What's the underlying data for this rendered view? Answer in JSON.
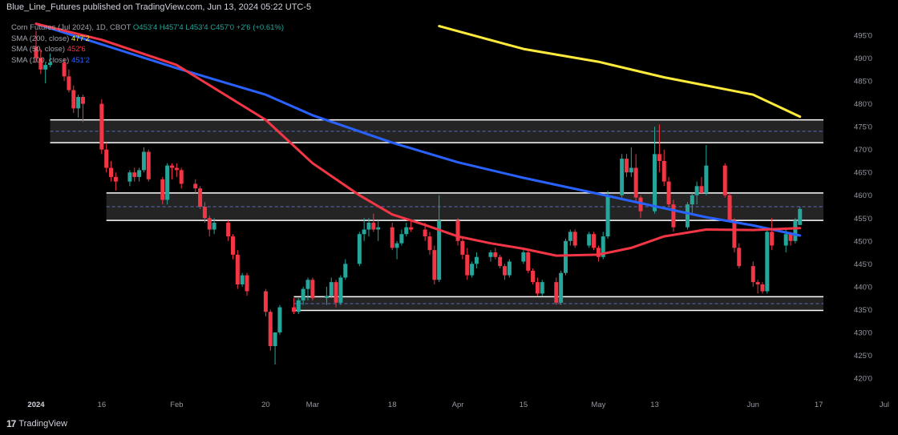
{
  "header": {
    "publisher": "Blue_Line_Futures published on TradingView.com, Jun 13, 2024 05:22 UTC-5"
  },
  "legend": {
    "symbol_line": {
      "name": "Corn Futures (Jul 2024), 1D, CBOT",
      "O": "O453'4",
      "H": "H457'4",
      "L": "L453'4",
      "C": "C457'0",
      "change": "+2'6 (+0.61%)"
    },
    "sma200": {
      "label": "SMA (200, close)",
      "value": "477'2",
      "color": "#ffeb3b"
    },
    "sma50": {
      "label": "SMA (50, close)",
      "value": "452'6",
      "color": "#f23645"
    },
    "sma100": {
      "label": "SMA (100, close)",
      "value": "451'2",
      "color": "#2962ff"
    }
  },
  "footer": {
    "brand": "TradingView"
  },
  "colors": {
    "up": "#26a69a",
    "down": "#f23645",
    "sma200": "#ffeb3b",
    "sma50": "#f23645",
    "sma100": "#2962ff",
    "zone_fill": "#2a2a2a",
    "zone_border": "#ffffff",
    "zone_mid": "#5b6cbf"
  },
  "chart_data": {
    "type": "candlestick",
    "ylim": [
      415,
      497
    ],
    "y_ticks": [
      "495'0",
      "490'0",
      "485'0",
      "480'0",
      "475'0",
      "470'0",
      "465'0",
      "460'0",
      "455'0",
      "450'0",
      "445'0",
      "440'0",
      "435'0",
      "430'0",
      "425'0",
      "420'0"
    ],
    "x_ticks": [
      {
        "label": "2024",
        "date": "2024-01-02",
        "bold": true
      },
      {
        "label": "16",
        "date": "2024-01-16"
      },
      {
        "label": "Feb",
        "date": "2024-02-01"
      },
      {
        "label": "20",
        "date": "2024-02-20"
      },
      {
        "label": "Mar",
        "date": "2024-03-01"
      },
      {
        "label": "18",
        "date": "2024-03-18"
      },
      {
        "label": "Apr",
        "date": "2024-04-01"
      },
      {
        "label": "15",
        "date": "2024-04-15"
      },
      {
        "label": "May",
        "date": "2024-05-01"
      },
      {
        "label": "13",
        "date": "2024-05-13"
      },
      {
        "label": "Jun",
        "date": "2024-06-03"
      },
      {
        "label": "17",
        "date": "2024-06-17"
      },
      {
        "label": "Jul",
        "date": "2024-07-01"
      }
    ],
    "zones": [
      {
        "from_date": "2024-01-05",
        "to_date": "2024-06-18",
        "low": 471.5,
        "high": 476.5,
        "mid": 474
      },
      {
        "from_date": "2024-01-17",
        "to_date": "2024-06-18",
        "low": 454.5,
        "high": 460.5,
        "mid": 457.5
      },
      {
        "from_date": "2024-02-26",
        "to_date": "2024-06-18",
        "low": 434.8,
        "high": 437.8,
        "mid": 436.3
      }
    ],
    "sma": [
      {
        "name": "SMA (200, close)",
        "color": "#ffeb3b",
        "points": [
          [
            "2024-03-28",
            497
          ],
          [
            "2024-04-15",
            492
          ],
          [
            "2024-05-01",
            489.2
          ],
          [
            "2024-05-15",
            485.8
          ],
          [
            "2024-06-03",
            482
          ],
          [
            "2024-06-13",
            477.2
          ]
        ]
      },
      {
        "name": "SMA (100, close)",
        "color": "#2962ff",
        "points": [
          [
            "2024-01-02",
            497.5
          ],
          [
            "2024-01-16",
            493
          ],
          [
            "2024-02-01",
            487.8
          ],
          [
            "2024-02-20",
            482
          ],
          [
            "2024-03-01",
            477.5
          ],
          [
            "2024-03-18",
            471.5
          ],
          [
            "2024-04-01",
            467.2
          ],
          [
            "2024-04-15",
            463.8
          ],
          [
            "2024-05-01",
            460.3
          ],
          [
            "2024-05-13",
            457.6
          ],
          [
            "2024-05-24",
            455.2
          ],
          [
            "2024-06-03",
            453.4
          ],
          [
            "2024-06-13",
            451.2
          ]
        ]
      },
      {
        "name": "SMA (50, close)",
        "color": "#f23645",
        "points": [
          [
            "2024-01-02",
            497.5
          ],
          [
            "2024-01-16",
            494
          ],
          [
            "2024-02-01",
            488.5
          ],
          [
            "2024-02-20",
            476.5
          ],
          [
            "2024-03-01",
            467
          ],
          [
            "2024-03-11",
            460
          ],
          [
            "2024-03-18",
            455.8
          ],
          [
            "2024-03-25",
            453.5
          ],
          [
            "2024-04-01",
            451
          ],
          [
            "2024-04-08",
            449.5
          ],
          [
            "2024-04-15",
            448.3
          ],
          [
            "2024-04-22",
            446.8
          ],
          [
            "2024-05-01",
            447
          ],
          [
            "2024-05-08",
            448.5
          ],
          [
            "2024-05-15",
            451
          ],
          [
            "2024-05-24",
            452.5
          ],
          [
            "2024-06-03",
            452.4
          ],
          [
            "2024-06-13",
            452.8
          ]
        ]
      }
    ],
    "candles": [
      [
        "2024-01-02",
        492.5,
        496,
        489,
        490
      ],
      [
        "2024-01-03",
        490,
        492,
        486.5,
        487.5
      ],
      [
        "2024-01-04",
        487.5,
        489,
        484.5,
        488.5
      ],
      [
        "2024-01-05",
        488.5,
        491,
        488,
        489
      ],
      [
        "2024-01-08",
        489,
        490,
        485,
        486
      ],
      [
        "2024-01-09",
        486,
        487.5,
        482.5,
        483
      ],
      [
        "2024-01-10",
        483,
        484,
        478,
        479
      ],
      [
        "2024-01-11",
        479,
        482,
        477,
        481.5
      ],
      [
        "2024-01-12",
        481.5,
        482,
        476,
        480
      ],
      [
        "2024-01-16",
        480,
        481,
        469,
        470
      ],
      [
        "2024-01-17",
        470,
        471.5,
        465,
        466
      ],
      [
        "2024-01-18",
        466,
        467.5,
        463,
        464
      ],
      [
        "2024-01-19",
        464,
        465,
        461,
        463
      ],
      [
        "2024-01-22",
        463,
        465.5,
        462,
        465
      ],
      [
        "2024-01-23",
        465,
        466,
        463,
        464
      ],
      [
        "2024-01-24",
        464,
        466,
        463,
        465.5
      ],
      [
        "2024-01-25",
        465.5,
        470.5,
        465,
        469.5
      ],
      [
        "2024-01-26",
        469.5,
        470,
        463,
        463.5
      ],
      [
        "2024-01-29",
        463.5,
        464,
        458,
        459
      ],
      [
        "2024-01-30",
        459,
        467,
        458,
        466.5
      ],
      [
        "2024-01-31",
        466.5,
        467,
        463.5,
        466
      ],
      [
        "2024-02-01",
        466,
        467,
        464,
        465.5
      ],
      [
        "2024-02-02",
        465.5,
        466,
        461.5,
        462.5
      ],
      [
        "2024-02-05",
        462.5,
        463.5,
        460.5,
        461.5
      ],
      [
        "2024-02-06",
        461.5,
        462,
        457,
        457.5
      ],
      [
        "2024-02-07",
        457.5,
        458.5,
        454,
        455
      ],
      [
        "2024-02-08",
        455,
        455.5,
        451,
        452.5
      ],
      [
        "2024-02-09",
        452.5,
        455,
        451.5,
        454
      ],
      [
        "2024-02-12",
        454,
        454.5,
        450,
        451
      ],
      [
        "2024-02-13",
        451,
        451.5,
        446,
        447
      ],
      [
        "2024-02-14",
        447,
        448,
        439.5,
        440.5
      ],
      [
        "2024-02-15",
        440.5,
        443,
        440,
        442.5
      ],
      [
        "2024-02-16",
        442.5,
        443,
        438,
        439
      ],
      [
        "2024-02-20",
        439,
        439.5,
        433.5,
        434.5
      ],
      [
        "2024-02-21",
        434.5,
        435,
        426,
        427
      ],
      [
        "2024-02-22",
        427,
        430,
        423,
        430
      ],
      [
        "2024-02-23",
        430,
        436,
        429.5,
        435.5
      ],
      [
        "2024-02-26",
        435.5,
        437.5,
        434,
        434.5
      ],
      [
        "2024-02-27",
        434.5,
        437.5,
        434,
        437
      ],
      [
        "2024-02-28",
        437,
        440,
        436,
        439.5
      ],
      [
        "2024-02-29",
        439.5,
        442,
        437,
        441.5
      ],
      [
        "2024-03-01",
        441.5,
        442,
        437,
        437.5
      ],
      [
        "2024-03-04",
        437.5,
        440,
        436,
        438
      ],
      [
        "2024-03-05",
        438,
        442,
        437.5,
        441
      ],
      [
        "2024-03-06",
        441,
        441.5,
        435.5,
        436.5
      ],
      [
        "2024-03-07",
        436.5,
        442.5,
        436,
        442
      ],
      [
        "2024-03-08",
        442,
        446,
        441.5,
        445
      ],
      [
        "2024-03-11",
        445,
        452,
        444.5,
        451.5
      ],
      [
        "2024-03-12",
        451.5,
        455,
        450,
        452.5
      ],
      [
        "2024-03-13",
        452.5,
        455,
        451,
        454
      ],
      [
        "2024-03-14",
        454,
        456,
        452,
        452.5
      ],
      [
        "2024-03-15",
        452.5,
        454.5,
        450,
        453
      ],
      [
        "2024-03-18",
        453,
        454,
        448,
        448.5
      ],
      [
        "2024-03-19",
        448.5,
        450,
        446,
        449.5
      ],
      [
        "2024-03-20",
        449.5,
        452.5,
        449,
        451.5
      ],
      [
        "2024-03-21",
        451.5,
        454,
        451,
        453
      ],
      [
        "2024-03-22",
        453,
        454.5,
        452,
        452.5
      ],
      [
        "2024-03-25",
        452.5,
        454,
        450,
        451
      ],
      [
        "2024-03-26",
        451,
        452,
        447,
        448
      ],
      [
        "2024-03-27",
        448,
        449,
        440.5,
        441.5
      ],
      [
        "2024-03-28",
        441.5,
        460,
        441,
        454.5
      ],
      [
        "2024-04-01",
        454.5,
        455,
        449,
        450
      ],
      [
        "2024-04-02",
        450,
        451,
        446,
        447
      ],
      [
        "2024-04-03",
        447,
        448.5,
        441.5,
        442.5
      ],
      [
        "2024-04-04",
        442.5,
        445.5,
        442,
        445
      ],
      [
        "2024-04-05",
        445,
        447.5,
        444,
        446.5
      ],
      [
        "2024-04-08",
        446.5,
        448,
        445.5,
        447.5
      ],
      [
        "2024-04-09",
        447.5,
        448.5,
        446,
        446.5
      ],
      [
        "2024-04-10",
        446.5,
        447,
        444,
        444.5
      ],
      [
        "2024-04-11",
        444.5,
        445,
        441.5,
        442.5
      ],
      [
        "2024-04-12",
        442.5,
        446,
        442,
        445.5
      ],
      [
        "2024-04-15",
        445.5,
        448,
        445,
        447.5
      ],
      [
        "2024-04-16",
        447.5,
        448,
        443,
        443.5
      ],
      [
        "2024-04-17",
        443.5,
        444,
        440.5,
        441
      ],
      [
        "2024-04-18",
        441,
        442,
        438,
        438.5
      ],
      [
        "2024-04-19",
        438.5,
        441.5,
        438,
        441
      ],
      [
        "2024-04-22",
        441,
        442,
        436,
        436.5
      ],
      [
        "2024-04-23",
        436.5,
        443.5,
        436,
        443
      ],
      [
        "2024-04-24",
        443,
        450.5,
        442.5,
        450
      ],
      [
        "2024-04-25",
        450,
        452.5,
        449,
        452
      ],
      [
        "2024-04-26",
        452,
        452.5,
        448.5,
        449
      ],
      [
        "2024-04-29",
        449,
        452,
        448.5,
        451.5
      ],
      [
        "2024-04-30",
        451.5,
        452,
        448,
        448.5
      ],
      [
        "2024-05-01",
        448.5,
        449,
        445.5,
        446.5
      ],
      [
        "2024-05-02",
        446.5,
        452,
        446,
        451
      ],
      [
        "2024-05-03",
        451,
        461,
        450.5,
        460
      ],
      [
        "2024-05-06",
        460,
        469,
        459.5,
        468
      ],
      [
        "2024-05-07",
        468,
        469,
        464,
        465
      ],
      [
        "2024-05-08",
        465,
        470.5,
        464,
        466
      ],
      [
        "2024-05-09",
        466,
        469,
        458.5,
        459.5
      ],
      [
        "2024-05-10",
        459.5,
        460,
        455,
        456.5
      ],
      [
        "2024-05-13",
        456.5,
        475,
        456,
        469
      ],
      [
        "2024-05-14",
        469,
        475.5,
        465,
        467.5
      ],
      [
        "2024-05-15",
        467.5,
        470,
        462,
        463
      ],
      [
        "2024-05-16",
        463,
        464,
        457.5,
        458
      ],
      [
        "2024-05-17",
        458,
        459,
        452,
        453
      ],
      [
        "2024-05-20",
        453,
        458.5,
        452.5,
        458
      ],
      [
        "2024-05-21",
        458,
        460.5,
        456,
        460
      ],
      [
        "2024-05-22",
        460,
        463,
        458,
        462
      ],
      [
        "2024-05-23",
        462,
        464,
        460.5,
        460.5
      ],
      [
        "2024-05-24",
        460.5,
        471,
        460,
        466.5
      ],
      [
        "2024-05-28",
        466.5,
        467,
        459.5,
        460
      ],
      [
        "2024-05-29",
        460,
        460.5,
        454,
        454.5
      ],
      [
        "2024-05-30",
        454.5,
        455,
        447.5,
        448.5
      ],
      [
        "2024-05-31",
        448.5,
        449.5,
        444,
        444.5
      ],
      [
        "2024-06-03",
        444.5,
        445.5,
        440,
        441
      ],
      [
        "2024-06-04",
        441,
        441.5,
        438.5,
        440.5
      ],
      [
        "2024-06-05",
        440.5,
        441,
        438.5,
        439
      ],
      [
        "2024-06-06",
        439,
        453,
        438.5,
        452
      ],
      [
        "2024-06-07",
        452,
        455,
        448,
        449
      ],
      [
        "2024-06-10",
        449,
        452.5,
        447.5,
        451.5
      ],
      [
        "2024-06-11",
        451.5,
        452,
        449,
        450
      ],
      [
        "2024-06-12",
        450,
        455,
        449.5,
        454.5
      ],
      [
        "2024-06-13",
        453.5,
        457.5,
        453.5,
        457
      ]
    ]
  }
}
